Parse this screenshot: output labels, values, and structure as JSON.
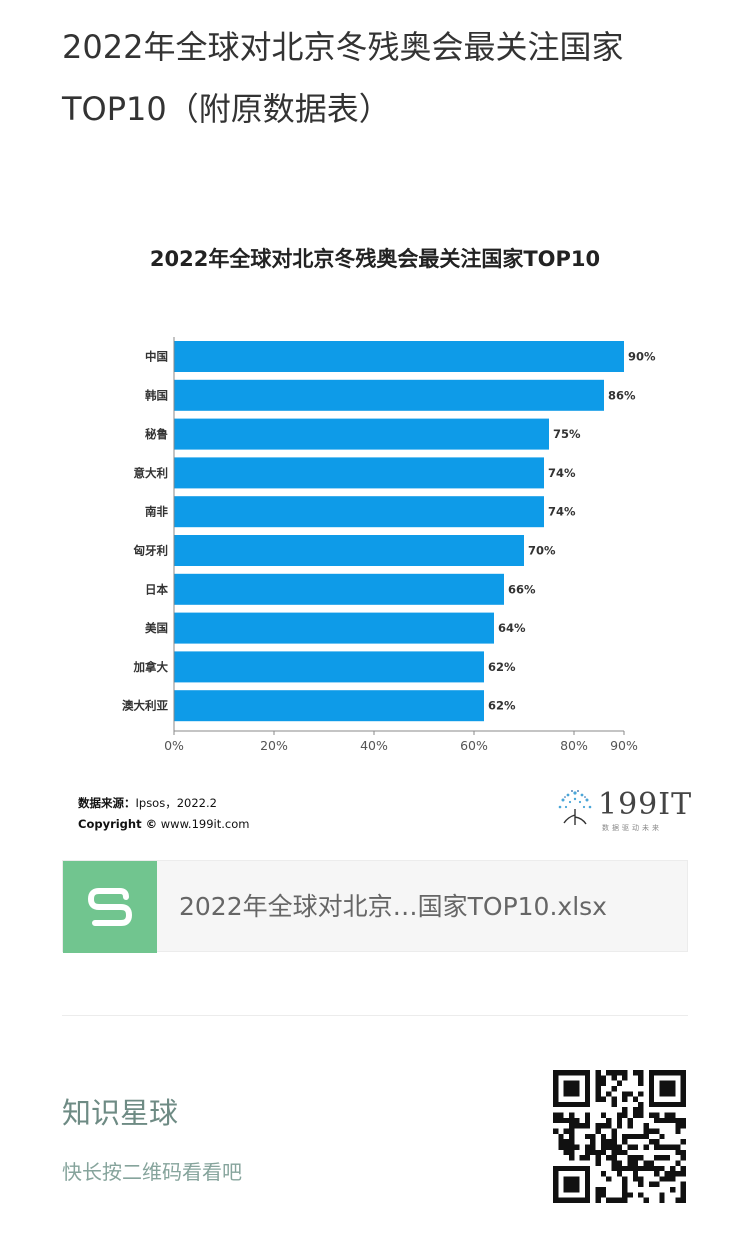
{
  "article": {
    "title": "2022年全球对北京冬残奥会最关注国家TOP10（附原数据表）"
  },
  "chart_data": {
    "type": "bar",
    "orientation": "horizontal",
    "title": "2022年全球对北京冬残奥会最关注国家TOP10",
    "categories": [
      "中国",
      "韩国",
      "秘鲁",
      "意大利",
      "南非",
      "匈牙利",
      "日本",
      "美国",
      "加拿大",
      "澳大利亚"
    ],
    "values": [
      90,
      86,
      75,
      74,
      74,
      70,
      66,
      64,
      62,
      62
    ],
    "value_labels": [
      "90%",
      "86%",
      "75%",
      "74%",
      "74%",
      "70%",
      "66%",
      "64%",
      "62%",
      "62%"
    ],
    "xticks": [
      0,
      20,
      40,
      60,
      80,
      90
    ],
    "xtick_labels": [
      "0%",
      "20%",
      "40%",
      "60%",
      "80%",
      "90%"
    ],
    "xlim": [
      0,
      90
    ],
    "grid": false,
    "bar_color": "#0e9be8"
  },
  "source": {
    "label": "数据来源：",
    "value": "Ipsos，2022.2",
    "copyright_label": "Copyright ©",
    "copyright_value": "www.199it.com"
  },
  "logo": {
    "text": "199IT",
    "subtitle": "数据驱动未来"
  },
  "attachment": {
    "filename": "2022年全球对北京…国家TOP10.xlsx",
    "icon": "spreadsheet-icon",
    "color": "#71c58f"
  },
  "knowledge": {
    "title": "知识星球",
    "subtitle": "快长按二维码看看吧"
  }
}
